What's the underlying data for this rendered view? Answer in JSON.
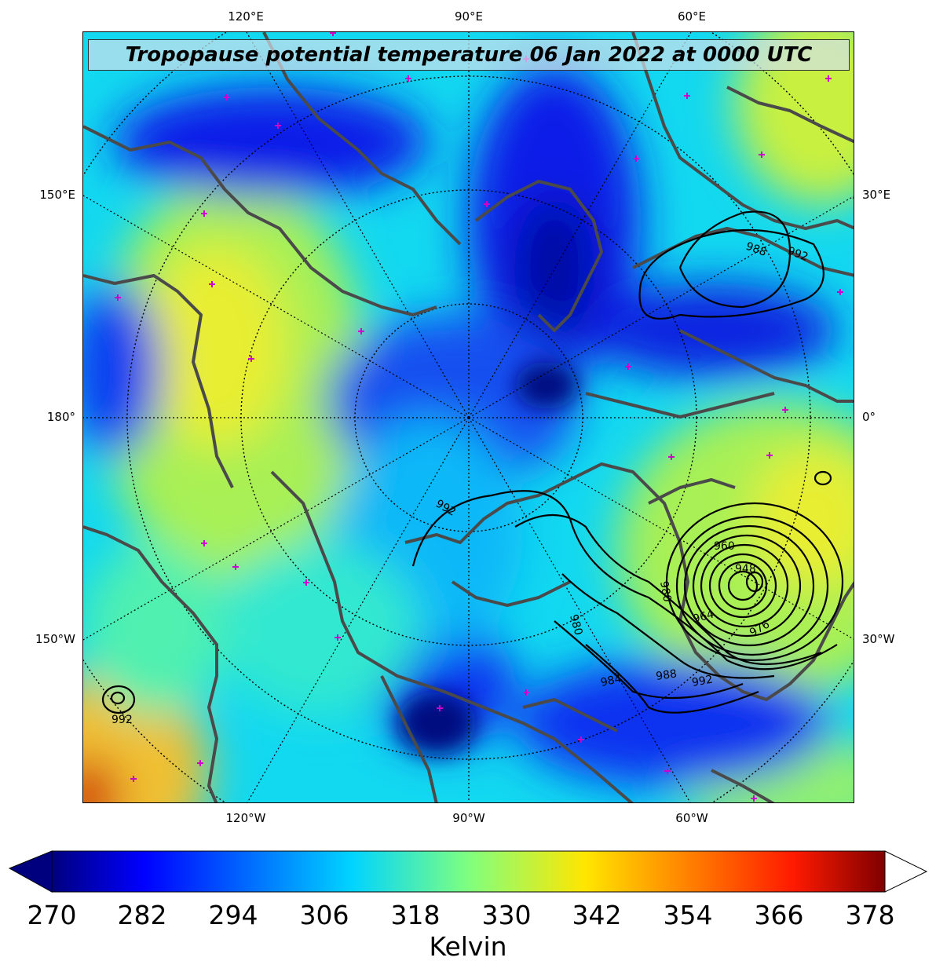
{
  "title": "Tropopause potential temperature 06 Jan 2022 at 0000 UTC",
  "lon_labels_top": [
    "120°E",
    "90°E",
    "60°E"
  ],
  "lon_labels_bottom": [
    "120°W",
    "90°W",
    "60°W"
  ],
  "lat_labels_left": [
    "150°E",
    "180°",
    "150°W"
  ],
  "lat_labels_right": [
    "30°E",
    "0°",
    "30°W"
  ],
  "pressure_contour_labels": [
    "992",
    "988",
    "992",
    "984",
    "988",
    "992",
    "992",
    "980",
    "980",
    "976",
    "964",
    "960",
    "948",
    "992"
  ],
  "colorbar": {
    "ticks": [
      "270",
      "282",
      "294",
      "306",
      "318",
      "330",
      "342",
      "354",
      "366",
      "378"
    ],
    "label": "Kelvin",
    "colormap": "jet",
    "extend": "both"
  },
  "colors": {
    "coastline": "#4a4a4a",
    "station_marker": "#cc00cc",
    "contour": "#000000",
    "jet": [
      "#00007f",
      "#0000ff",
      "#007fff",
      "#00ffff",
      "#7fff7f",
      "#ffff00",
      "#ff7f00",
      "#ff0000",
      "#7f0000"
    ]
  }
}
